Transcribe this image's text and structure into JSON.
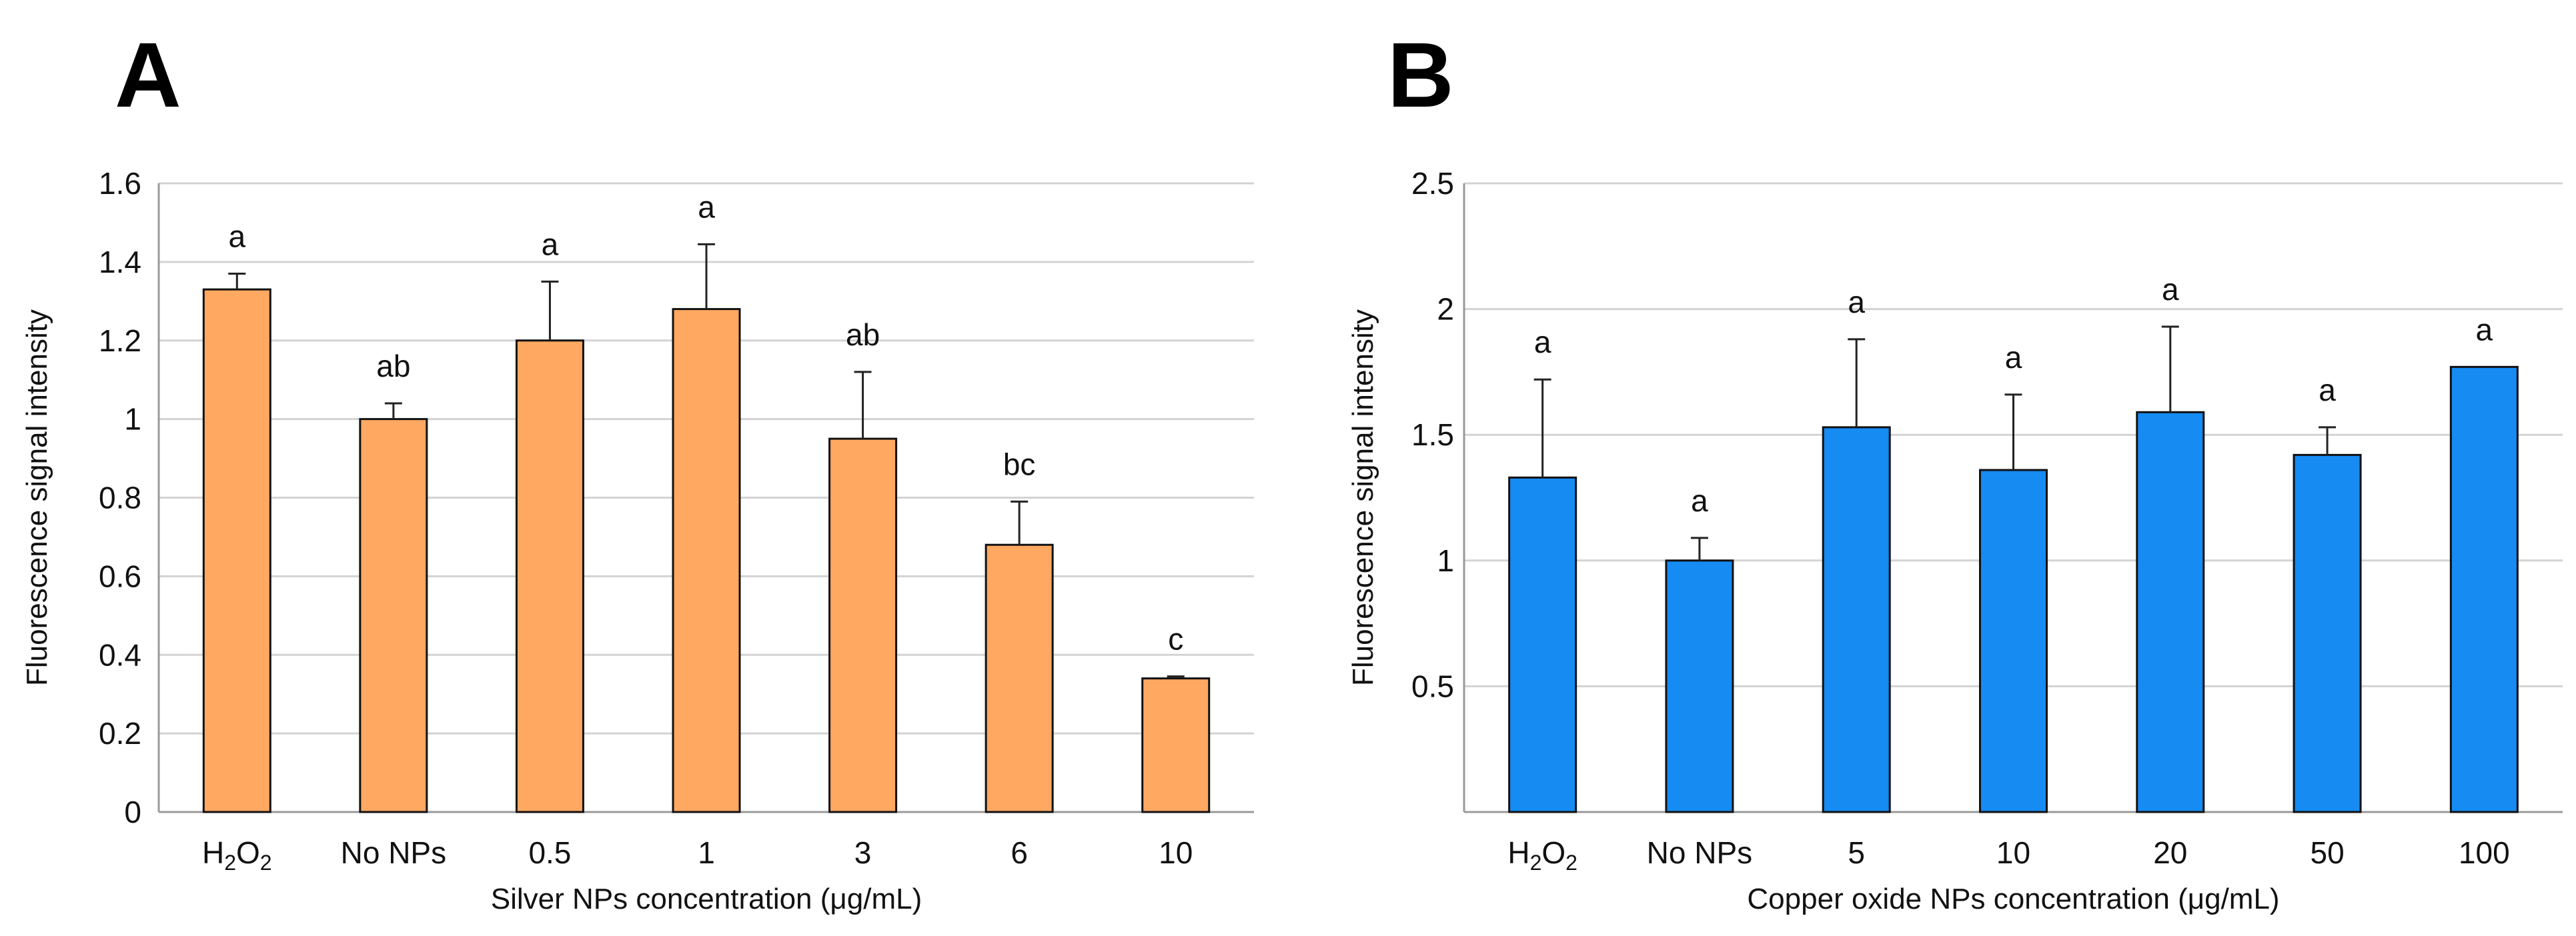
{
  "chart_data": [
    {
      "panel": "A",
      "type": "bar",
      "categories": [
        "H2O2",
        "No NPs",
        "0.5",
        "1",
        "3",
        "6",
        "10"
      ],
      "values": [
        1.33,
        1.0,
        1.2,
        1.28,
        0.95,
        0.68,
        0.34
      ],
      "errors": [
        0.04,
        0.04,
        0.15,
        0.165,
        0.17,
        0.11,
        0.005
      ],
      "letters": [
        "a",
        "ab",
        "a",
        "a",
        "ab",
        "bc",
        "c"
      ],
      "xlabel": "Silver NPs concentration (μg/mL)",
      "ylabel": "Fluorescence signal intensity",
      "ylim": [
        0,
        1.6
      ],
      "yticks": [
        0,
        0.2,
        0.4,
        0.6,
        0.8,
        1,
        1.2,
        1.4,
        1.6
      ],
      "ytick_labels": [
        "0",
        "0.2",
        "0.4",
        "0.6",
        "0.8",
        "1",
        "1.2",
        "1.4",
        "1.6"
      ],
      "color": "#FFA862",
      "grid": true
    },
    {
      "panel": "B",
      "type": "bar",
      "categories": [
        "H2O2",
        "No NPs",
        "5",
        "10",
        "20",
        "50",
        "100"
      ],
      "values": [
        1.33,
        1.0,
        1.53,
        1.36,
        1.59,
        1.42,
        1.77
      ],
      "errors": [
        0.39,
        0.09,
        0.35,
        0.3,
        0.34,
        0.11,
        0.0
      ],
      "letters": [
        "a",
        "a",
        "a",
        "a",
        "a",
        "a",
        "a"
      ],
      "xlabel": "Copper oxide NPs concentration (μg/mL)",
      "ylabel": "Fluorescence signal intensity",
      "ylim": [
        0,
        2.5
      ],
      "yticks": [
        0.5,
        1,
        1.5,
        2,
        2.5
      ],
      "ytick_labels": [
        "0.5",
        "1",
        "1.5",
        "2",
        "2.5"
      ],
      "color": "#168BF2",
      "grid": true
    }
  ]
}
